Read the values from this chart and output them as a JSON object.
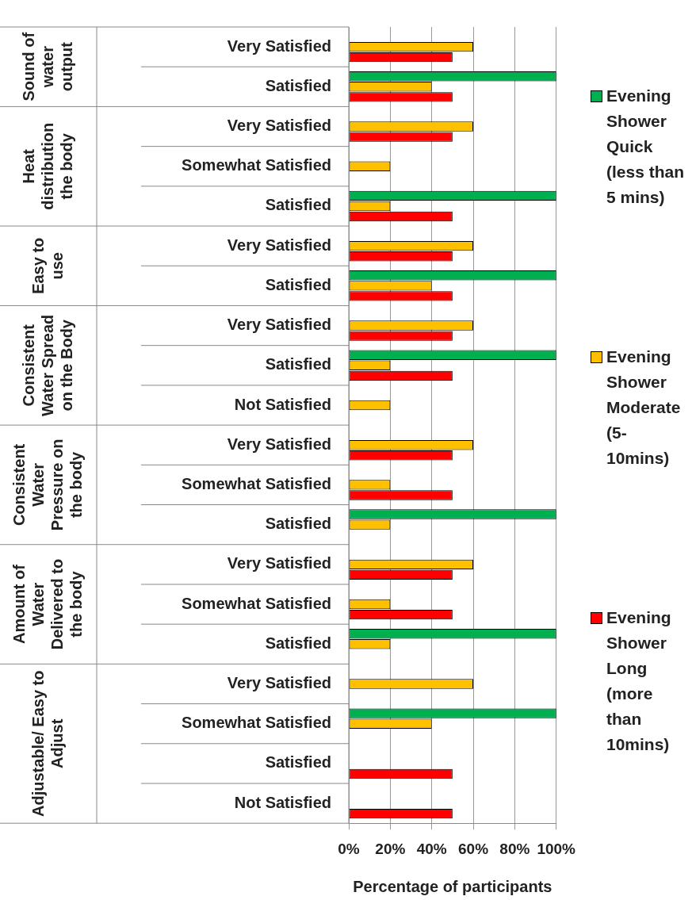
{
  "chart_data": {
    "type": "bar",
    "orientation": "horizontal",
    "xlabel": "Percentage of participants",
    "categories": [
      "Very Satisfied",
      "Satisfied",
      "Very Satisfied",
      "Somewhat Satisfied",
      "Satisfied",
      "Very Satisfied",
      "Satisfied",
      "Very Satisfied",
      "Satisfied",
      "Not Satisfied",
      "Very Satisfied",
      "Somewhat Satisfied",
      "Satisfied",
      "Very Satisfied",
      "Somewhat Satisfied",
      "Satisfied",
      "Very Satisfied",
      "Somewhat Satisfied",
      "Satisfied",
      "Not Satisfied"
    ],
    "annotations": [
      "Sound of water output",
      "Heat distribution the body",
      "Easy to use",
      "Consistent Water Spread on the Body",
      "Consistent Water Pressure on the body",
      "Amount of Water Delivered to the body",
      "Adjustable/ Easy to Adjust"
    ],
    "series": [
      {
        "name": "Evening Shower Quick (less than 5 mins)",
        "color": "#00b050",
        "values": [
          null,
          100,
          null,
          null,
          100,
          null,
          100,
          null,
          100,
          null,
          null,
          null,
          100,
          null,
          null,
          100,
          null,
          100,
          null,
          null
        ]
      },
      {
        "name": "Evening Shower Moderate (5-10mins)",
        "color": "#ffc000",
        "values": [
          60,
          40,
          60,
          20,
          20,
          60,
          40,
          60,
          20,
          20,
          60,
          20,
          20,
          60,
          20,
          20,
          60,
          40,
          null,
          null
        ]
      },
      {
        "name": "Evening Shower Long (more than 10mins)",
        "color": "#ff0000",
        "values": [
          50,
          50,
          50,
          null,
          50,
          50,
          50,
          50,
          50,
          null,
          50,
          50,
          null,
          50,
          50,
          null,
          null,
          null,
          50,
          50
        ]
      }
    ],
    "xlim": [
      0,
      100
    ],
    "xticks": [
      {
        "value": 0,
        "label": "0%"
      },
      {
        "value": 20,
        "label": "20%"
      },
      {
        "value": 40,
        "label": "40%"
      },
      {
        "value": 60,
        "label": "60%"
      },
      {
        "value": 80,
        "label": "80%"
      },
      {
        "value": 100,
        "label": "100%"
      }
    ],
    "grid": "x",
    "legend": "right"
  }
}
